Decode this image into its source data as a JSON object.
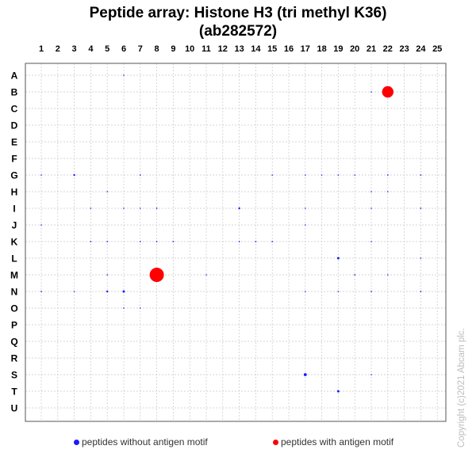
{
  "chart_data": {
    "type": "scatter",
    "title_line1": "Peptide array:  Histone H3 (tri methyl K36)",
    "title_line2": "(ab282572)",
    "columns": [
      "1",
      "2",
      "3",
      "4",
      "5",
      "6",
      "7",
      "8",
      "9",
      "10",
      "11",
      "12",
      "13",
      "14",
      "15",
      "16",
      "17",
      "18",
      "19",
      "20",
      "21",
      "22",
      "23",
      "24",
      "25"
    ],
    "rows": [
      "A",
      "B",
      "C",
      "D",
      "E",
      "F",
      "G",
      "H",
      "I",
      "J",
      "K",
      "L",
      "M",
      "N",
      "O",
      "P",
      "Q",
      "R",
      "S",
      "T",
      "U"
    ],
    "grid": true,
    "legend_position": "bottom",
    "series": [
      {
        "name": "peptides without antigen motif",
        "color": "#1a1aff",
        "points": [
          {
            "col": 6,
            "row": "A",
            "size": 0.5
          },
          {
            "col": 21,
            "row": "B",
            "size": 0.5
          },
          {
            "col": 1,
            "row": "G",
            "size": 0.5
          },
          {
            "col": 3,
            "row": "G",
            "size": 1
          },
          {
            "col": 7,
            "row": "G",
            "size": 0.7
          },
          {
            "col": 15,
            "row": "G",
            "size": 0.5
          },
          {
            "col": 17,
            "row": "G",
            "size": 0.5
          },
          {
            "col": 18,
            "row": "G",
            "size": 0.5
          },
          {
            "col": 19,
            "row": "G",
            "size": 0.5
          },
          {
            "col": 20,
            "row": "G",
            "size": 0.5
          },
          {
            "col": 22,
            "row": "G",
            "size": 0.7
          },
          {
            "col": 24,
            "row": "G",
            "size": 0.7
          },
          {
            "col": 5,
            "row": "H",
            "size": 0.5
          },
          {
            "col": 21,
            "row": "H",
            "size": 0.5
          },
          {
            "col": 22,
            "row": "H",
            "size": 0.5
          },
          {
            "col": 4,
            "row": "I",
            "size": 0.5
          },
          {
            "col": 6,
            "row": "I",
            "size": 0.5
          },
          {
            "col": 7,
            "row": "I",
            "size": 0.5
          },
          {
            "col": 8,
            "row": "I",
            "size": 0.7
          },
          {
            "col": 13,
            "row": "I",
            "size": 1
          },
          {
            "col": 17,
            "row": "I",
            "size": 0.5
          },
          {
            "col": 21,
            "row": "I",
            "size": 0.5
          },
          {
            "col": 24,
            "row": "I",
            "size": 0.7
          },
          {
            "col": 1,
            "row": "J",
            "size": 0.5
          },
          {
            "col": 17,
            "row": "J",
            "size": 0.5
          },
          {
            "col": 4,
            "row": "K",
            "size": 0.7
          },
          {
            "col": 5,
            "row": "K",
            "size": 0.7
          },
          {
            "col": 7,
            "row": "K",
            "size": 0.7
          },
          {
            "col": 8,
            "row": "K",
            "size": 0.7
          },
          {
            "col": 9,
            "row": "K",
            "size": 0.7
          },
          {
            "col": 13,
            "row": "K",
            "size": 0.7
          },
          {
            "col": 14,
            "row": "K",
            "size": 0.7
          },
          {
            "col": 15,
            "row": "K",
            "size": 0.7
          },
          {
            "col": 21,
            "row": "K",
            "size": 0.5
          },
          {
            "col": 19,
            "row": "L",
            "size": 1.2
          },
          {
            "col": 24,
            "row": "L",
            "size": 0.5
          },
          {
            "col": 5,
            "row": "M",
            "size": 0.5
          },
          {
            "col": 11,
            "row": "M",
            "size": 0.5
          },
          {
            "col": 20,
            "row": "M",
            "size": 0.7
          },
          {
            "col": 22,
            "row": "M",
            "size": 0.5
          },
          {
            "col": 1,
            "row": "N",
            "size": 0.7
          },
          {
            "col": 3,
            "row": "N",
            "size": 0.5
          },
          {
            "col": 5,
            "row": "N",
            "size": 1
          },
          {
            "col": 6,
            "row": "N",
            "size": 1.2
          },
          {
            "col": 17,
            "row": "N",
            "size": 0.5
          },
          {
            "col": 19,
            "row": "N",
            "size": 0.5
          },
          {
            "col": 21,
            "row": "N",
            "size": 0.7
          },
          {
            "col": 24,
            "row": "N",
            "size": 0.7
          },
          {
            "col": 6,
            "row": "O",
            "size": 0.5
          },
          {
            "col": 7,
            "row": "O",
            "size": 0.5
          },
          {
            "col": 17,
            "row": "S",
            "size": 1.6
          },
          {
            "col": 21,
            "row": "S",
            "size": 0.5
          },
          {
            "col": 19,
            "row": "T",
            "size": 1.2
          }
        ]
      },
      {
        "name": "peptides with antigen motif",
        "color": "#ff0000",
        "points": [
          {
            "col": 22,
            "row": "B",
            "size": 6
          },
          {
            "col": 8,
            "row": "M",
            "size": 7.5
          }
        ]
      }
    ]
  },
  "copyright": "Copyright (c)2021 Abcam plc."
}
